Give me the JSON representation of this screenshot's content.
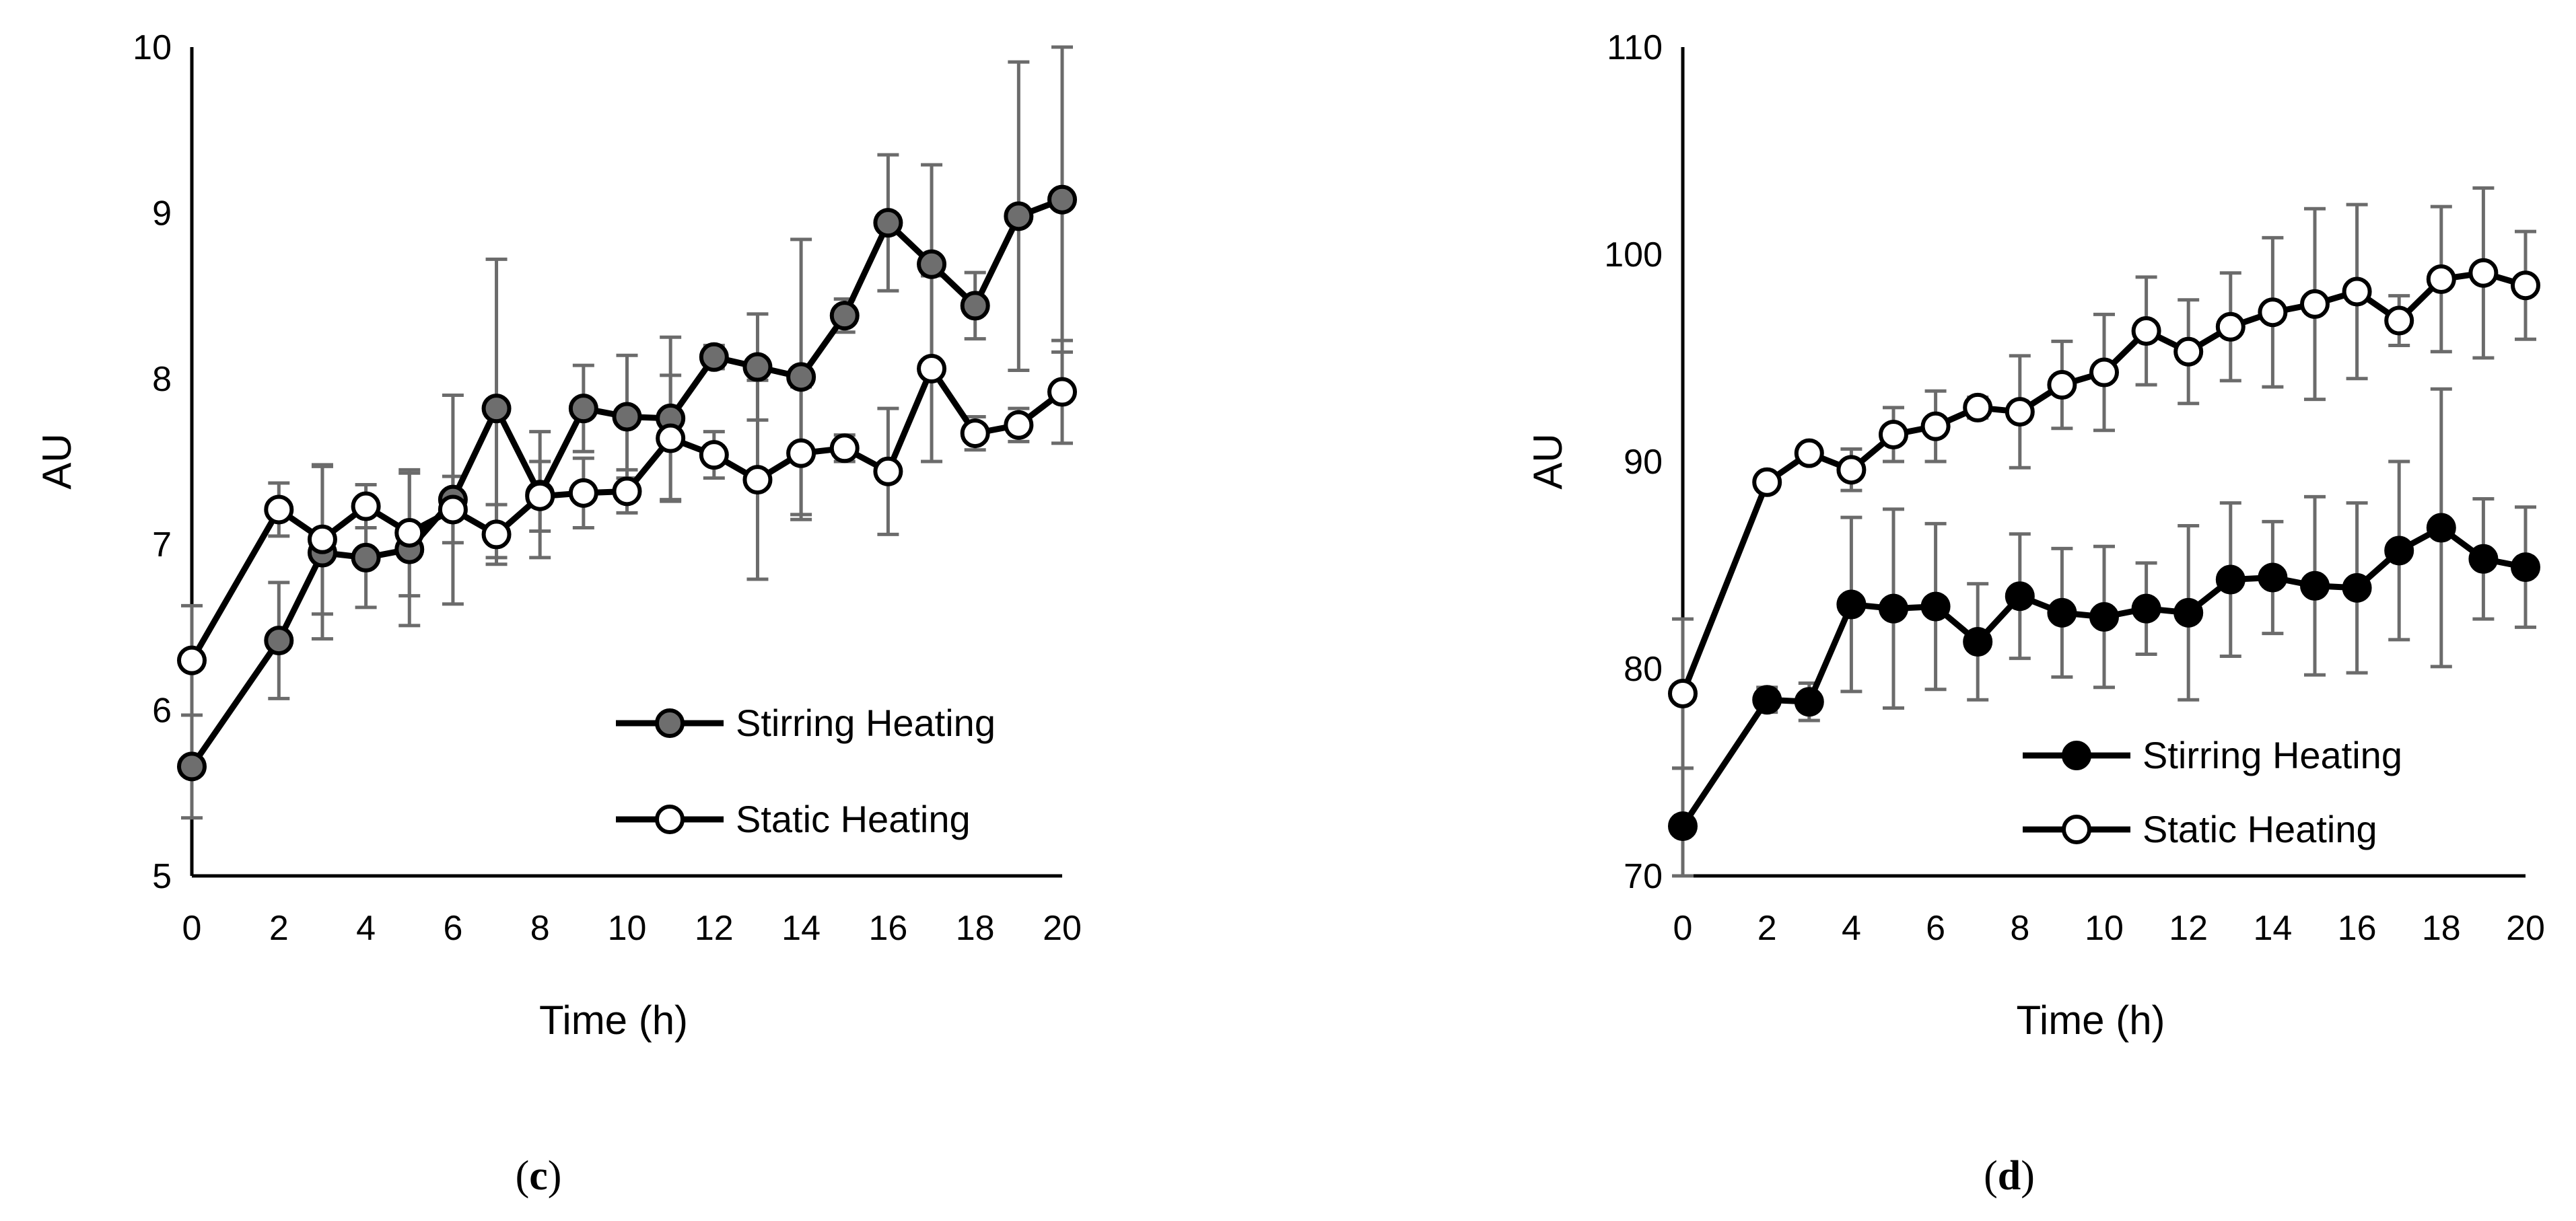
{
  "chart_data": [
    {
      "type": "line",
      "panel": "c",
      "caption": {
        "open": "(",
        "letter": "c",
        "close": ")"
      },
      "xlabel": "Time (h)",
      "ylabel": "AU",
      "xlim": [
        0,
        20
      ],
      "ylim": [
        5,
        10
      ],
      "xticks": [
        0,
        2,
        4,
        6,
        8,
        10,
        12,
        14,
        16,
        18,
        20
      ],
      "yticks": [
        5,
        6,
        7,
        8,
        9,
        10
      ],
      "grid": false,
      "legend_position": "bottom-right",
      "x": [
        0,
        2,
        3,
        4,
        5,
        6,
        7,
        8,
        9,
        10,
        11,
        12,
        13,
        14,
        15,
        16,
        17,
        18,
        19,
        20
      ],
      "series": [
        {
          "name": "Stirring Heating",
          "marker": "filled-gray",
          "marker_color": "#6e6e6e",
          "values": [
            5.66,
            6.42,
            6.95,
            6.92,
            6.97,
            7.27,
            7.82,
            7.3,
            7.82,
            7.77,
            7.76,
            8.13,
            8.07,
            8.01,
            8.38,
            8.94,
            8.69,
            8.44,
            8.98,
            9.08
          ],
          "errors": [
            0.31,
            0.35,
            0.52,
            0.3,
            0.46,
            0.63,
            0.9,
            0.38,
            0.26,
            0.37,
            0.49,
            0.07,
            0.32,
            0.83,
            0.1,
            0.41,
            0.6,
            0.2,
            0.93,
            0.92
          ]
        },
        {
          "name": "Static Heating",
          "marker": "open",
          "marker_color": "#ffffff",
          "values": [
            6.3,
            7.21,
            7.03,
            7.23,
            7.07,
            7.21,
            7.06,
            7.29,
            7.31,
            7.32,
            7.64,
            7.54,
            7.39,
            7.55,
            7.58,
            7.44,
            8.06,
            7.67,
            7.72,
            7.92
          ],
          "errors": [
            0.33,
            0.16,
            0.45,
            0.13,
            0.38,
            0.2,
            0.18,
            0.21,
            0.21,
            0.13,
            0.38,
            0.14,
            0.6,
            0.4,
            0.08,
            0.38,
            0.56,
            0.1,
            0.1,
            0.31
          ]
        }
      ]
    },
    {
      "type": "line",
      "panel": "d",
      "caption": {
        "open": "(",
        "letter": "d",
        "close": ")"
      },
      "xlabel": "Time (h)",
      "ylabel": "AU",
      "xlim": [
        0,
        20
      ],
      "ylim": [
        70,
        110
      ],
      "xticks": [
        0,
        2,
        4,
        6,
        8,
        10,
        12,
        14,
        16,
        18,
        20
      ],
      "yticks": [
        70,
        80,
        90,
        100,
        110
      ],
      "grid": false,
      "legend_position": "bottom-right",
      "x": [
        0,
        2,
        3,
        4,
        5,
        6,
        7,
        8,
        9,
        10,
        11,
        12,
        13,
        14,
        15,
        16,
        17,
        18,
        19,
        20
      ],
      "series": [
        {
          "name": "Stirring Heating",
          "marker": "filled-black",
          "marker_color": "#000000",
          "values": [
            72.4,
            78.5,
            78.4,
            83.1,
            82.9,
            83.0,
            81.3,
            83.5,
            82.7,
            82.5,
            82.9,
            82.7,
            84.3,
            84.4,
            84.0,
            83.9,
            85.7,
            86.8,
            85.3,
            84.9
          ],
          "errors": [
            2.8,
            0.6,
            0.9,
            4.2,
            4.8,
            4.0,
            2.8,
            3.0,
            3.1,
            3.4,
            2.2,
            4.2,
            3.7,
            2.7,
            4.3,
            4.1,
            4.3,
            6.7,
            2.9,
            2.9
          ]
        },
        {
          "name": "Static Heating",
          "marker": "open",
          "marker_color": "#ffffff",
          "values": [
            78.8,
            89.0,
            90.4,
            89.6,
            91.3,
            91.7,
            92.6,
            92.4,
            93.7,
            94.3,
            96.3,
            95.3,
            96.5,
            97.2,
            97.6,
            98.2,
            96.8,
            98.8,
            99.1,
            98.5
          ],
          "errors": [
            3.6,
            0.3,
            0.3,
            1.0,
            1.3,
            1.7,
            0.5,
            2.7,
            2.1,
            2.8,
            2.6,
            2.5,
            2.6,
            3.6,
            4.6,
            4.2,
            1.2,
            3.5,
            4.1,
            2.6
          ]
        }
      ]
    }
  ]
}
